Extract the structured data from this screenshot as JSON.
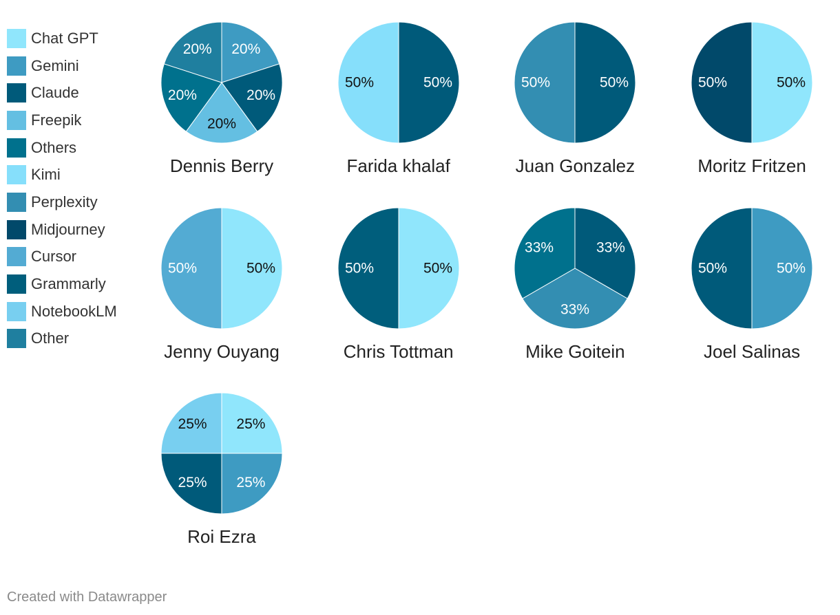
{
  "chart_data": {
    "type": "pie",
    "legend_position": "left",
    "legend": [
      {
        "label": "Chat GPT",
        "color": "#90E6FC"
      },
      {
        "label": "Gemini",
        "color": "#3E9BC2"
      },
      {
        "label": "Claude",
        "color": "#005A7A"
      },
      {
        "label": "Freepik",
        "color": "#64BFE2"
      },
      {
        "label": "Others",
        "color": "#00718D"
      },
      {
        "label": "Kimi",
        "color": "#86DFFB"
      },
      {
        "label": "Perplexity",
        "color": "#338EB2"
      },
      {
        "label": "Midjourney",
        "color": "#01496A"
      },
      {
        "label": "Cursor",
        "color": "#53ABD3"
      },
      {
        "label": "Grammarly",
        "color": "#005E7C"
      },
      {
        "label": "NotebookLM",
        "color": "#78CFF0"
      },
      {
        "label": "Other",
        "color": "#1F7F9F"
      }
    ],
    "pies": [
      {
        "title": "Dennis Berry",
        "slices": [
          {
            "name": "Gemini",
            "value": 20,
            "label": "20%",
            "color": "#3E9BC2",
            "text_color": "#ffffff"
          },
          {
            "name": "Claude",
            "value": 20,
            "label": "20%",
            "color": "#005A7A",
            "text_color": "#ffffff"
          },
          {
            "name": "Freepik",
            "value": 20,
            "label": "20%",
            "color": "#64BFE2",
            "text_color": "#111111"
          },
          {
            "name": "Others",
            "value": 20,
            "label": "20%",
            "color": "#00718D",
            "text_color": "#ffffff"
          },
          {
            "name": "Other",
            "value": 20,
            "label": "20%",
            "color": "#1F7F9F",
            "text_color": "#ffffff"
          }
        ]
      },
      {
        "title": "Farida khalaf",
        "slices": [
          {
            "name": "Claude",
            "value": 50,
            "label": "50%",
            "color": "#005A7A",
            "text_color": "#ffffff"
          },
          {
            "name": "Kimi",
            "value": 50,
            "label": "50%",
            "color": "#86DFFB",
            "text_color": "#111111"
          }
        ]
      },
      {
        "title": "Juan Gonzalez",
        "slices": [
          {
            "name": "Claude",
            "value": 50,
            "label": "50%",
            "color": "#005A7A",
            "text_color": "#ffffff"
          },
          {
            "name": "Perplexity",
            "value": 50,
            "label": "50%",
            "color": "#338EB2",
            "text_color": "#ffffff"
          }
        ]
      },
      {
        "title": "Moritz Fritzen",
        "slices": [
          {
            "name": "Chat GPT",
            "value": 50,
            "label": "50%",
            "color": "#90E6FC",
            "text_color": "#111111"
          },
          {
            "name": "Midjourney",
            "value": 50,
            "label": "50%",
            "color": "#01496A",
            "text_color": "#ffffff"
          }
        ]
      },
      {
        "title": "Jenny Ouyang",
        "slices": [
          {
            "name": "Chat GPT",
            "value": 50,
            "label": "50%",
            "color": "#90E6FC",
            "text_color": "#111111"
          },
          {
            "name": "Cursor",
            "value": 50,
            "label": "50%",
            "color": "#53ABD3",
            "text_color": "#ffffff"
          }
        ]
      },
      {
        "title": "Chris Tottman",
        "slices": [
          {
            "name": "Chat GPT",
            "value": 50,
            "label": "50%",
            "color": "#90E6FC",
            "text_color": "#111111"
          },
          {
            "name": "Grammarly",
            "value": 50,
            "label": "50%",
            "color": "#005E7C",
            "text_color": "#ffffff"
          }
        ]
      },
      {
        "title": "Mike Goitein",
        "slices": [
          {
            "name": "Claude",
            "value": 33,
            "label": "33%",
            "color": "#005A7A",
            "text_color": "#ffffff"
          },
          {
            "name": "Perplexity",
            "value": 33,
            "label": "33%",
            "color": "#338EB2",
            "text_color": "#ffffff"
          },
          {
            "name": "Others",
            "value": 33,
            "label": "33%",
            "color": "#00718D",
            "text_color": "#ffffff"
          }
        ]
      },
      {
        "title": "Joel Salinas",
        "slices": [
          {
            "name": "Gemini",
            "value": 50,
            "label": "50%",
            "color": "#3E9BC2",
            "text_color": "#ffffff"
          },
          {
            "name": "Claude",
            "value": 50,
            "label": "50%",
            "color": "#005A7A",
            "text_color": "#ffffff"
          }
        ]
      },
      {
        "title": "Roi Ezra",
        "slices": [
          {
            "name": "Chat GPT",
            "value": 25,
            "label": "25%",
            "color": "#90E6FC",
            "text_color": "#111111"
          },
          {
            "name": "Gemini",
            "value": 25,
            "label": "25%",
            "color": "#3E9BC2",
            "text_color": "#ffffff"
          },
          {
            "name": "Claude",
            "value": 25,
            "label": "25%",
            "color": "#005A7A",
            "text_color": "#ffffff"
          },
          {
            "name": "NotebookLM",
            "value": 25,
            "label": "25%",
            "color": "#78CFF0",
            "text_color": "#111111"
          }
        ]
      }
    ]
  },
  "footer": {
    "credit": "Created with Datawrapper"
  }
}
